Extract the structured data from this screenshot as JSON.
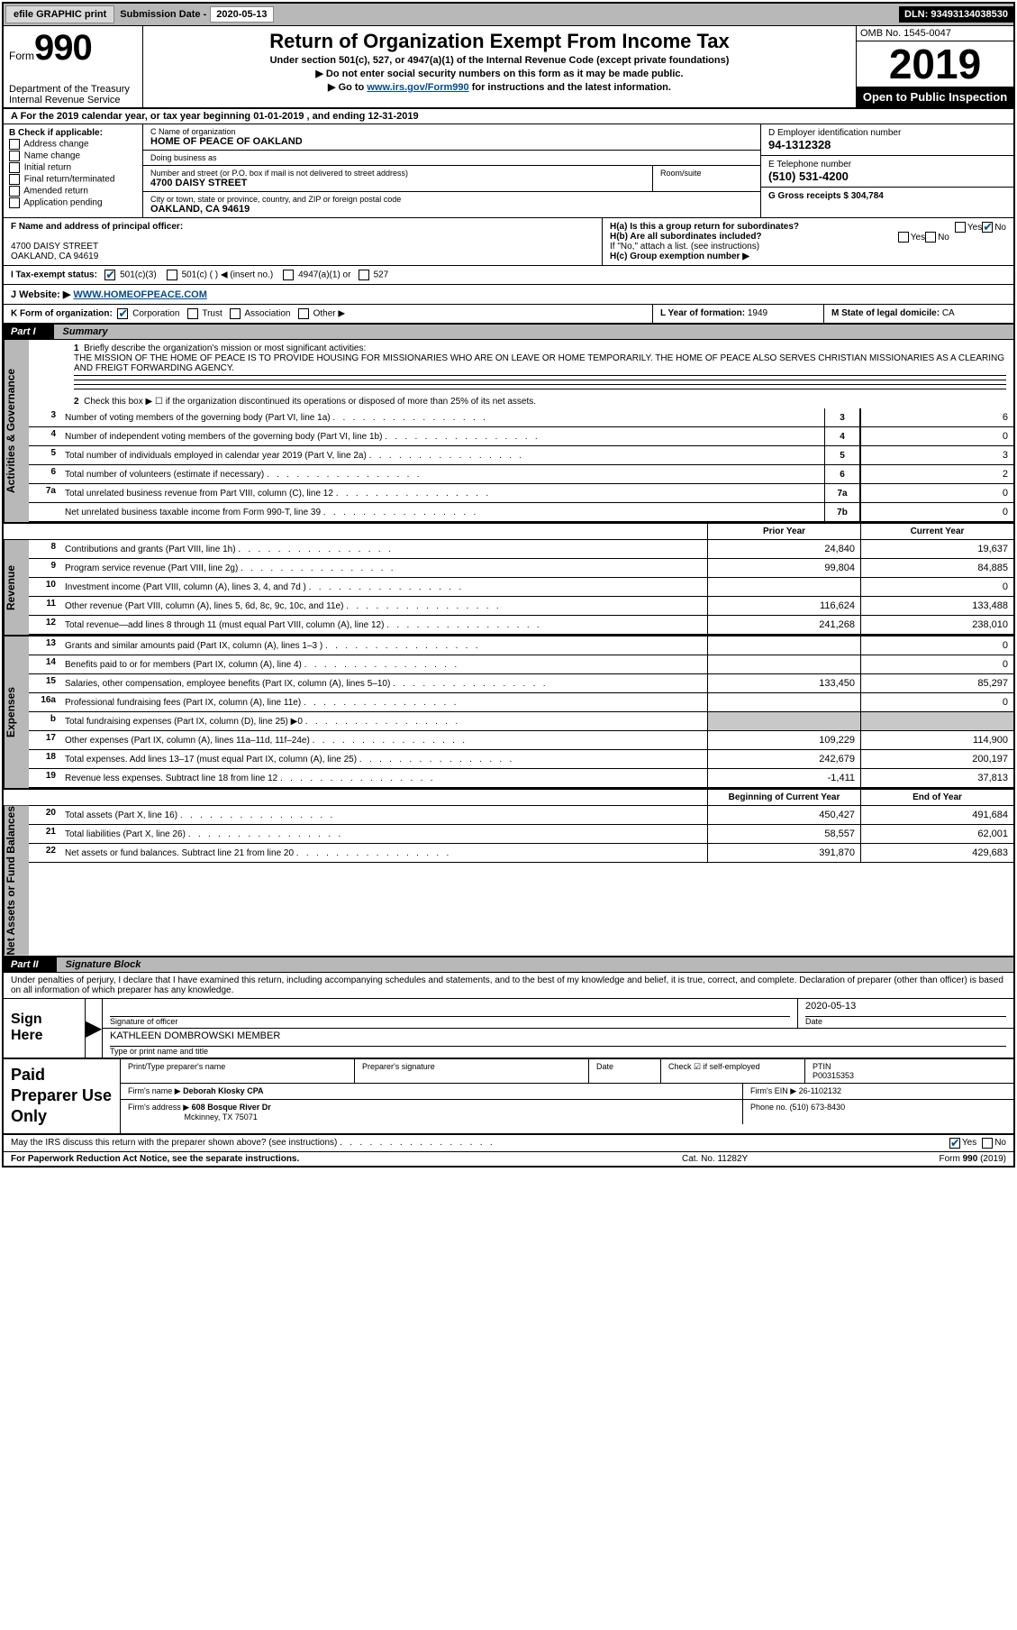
{
  "colors": {
    "header_gray": "#b8b8b8",
    "link_blue": "#004b8d",
    "black": "#000000",
    "white": "#ffffff",
    "shade": "#c8c8c8"
  },
  "topbar": {
    "efile": "efile GRAPHIC print",
    "sub_label": "Submission Date -",
    "sub_date": "2020-05-13",
    "dln": "DLN: 93493134038530"
  },
  "header": {
    "form_word": "Form",
    "form_num": "990",
    "dept": "Department of the Treasury\nInternal Revenue Service",
    "title": "Return of Organization Exempt From Income Tax",
    "sub1": "Under section 501(c), 527, or 4947(a)(1) of the Internal Revenue Code (except private foundations)",
    "sub2": "▶ Do not enter social security numbers on this form as it may be made public.",
    "sub3_pre": "▶ Go to ",
    "sub3_link": "www.irs.gov/Form990",
    "sub3_post": " for instructions and the latest information.",
    "omb": "OMB No. 1545-0047",
    "year": "2019",
    "inspect": "Open to Public Inspection"
  },
  "period": {
    "prefix": "A For the 2019 calendar year, or tax year beginning ",
    "start": "01-01-2019",
    "mid": " , and ending ",
    "end": "12-31-2019"
  },
  "boxB": {
    "hdr": "B Check if applicable:",
    "opts": [
      "Address change",
      "Name change",
      "Initial return",
      "Final return/terminated",
      "Amended return",
      "Application pending"
    ]
  },
  "boxC": {
    "name_lbl": "C Name of organization",
    "name": "HOME OF PEACE OF OAKLAND",
    "dba_lbl": "Doing business as",
    "dba": "",
    "addr_lbl": "Number and street (or P.O. box if mail is not delivered to street address)",
    "room_lbl": "Room/suite",
    "addr": "4700 DAISY STREET",
    "city_lbl": "City or town, state or province, country, and ZIP or foreign postal code",
    "city": "OAKLAND, CA  94619"
  },
  "boxD": {
    "lbl": "D Employer identification number",
    "val": "94-1312328"
  },
  "boxE": {
    "lbl": "E Telephone number",
    "val": "(510) 531-4200"
  },
  "boxG": {
    "lbl": "G Gross receipts $",
    "val": "304,784"
  },
  "boxF": {
    "lbl": "F Name and address of principal officer:",
    "addr1": "4700 DAISY STREET",
    "addr2": "OAKLAND, CA  94619"
  },
  "boxH": {
    "a_lbl": "H(a)  Is this a group return for subordinates?",
    "a_yes": "Yes",
    "a_no": "No",
    "a_checked": "No",
    "b_lbl": "H(b)  Are all subordinates included?",
    "b_yes": "Yes",
    "b_no": "No",
    "b_note": "If \"No,\" attach a list. (see instructions)",
    "c_lbl": "H(c)  Group exemption number ▶"
  },
  "taxstatus": {
    "lbl": "I  Tax-exempt status:",
    "o1": "501(c)(3)",
    "o1_checked": true,
    "o2": "501(c) (   ) ◀ (insert no.)",
    "o3": "4947(a)(1) or",
    "o4": "527"
  },
  "boxJ": {
    "lbl": "J  Website: ▶",
    "val": "WWW.HOMEOFPEACE.COM"
  },
  "boxK": {
    "lbl": "K Form of organization:",
    "o1": "Corporation",
    "o1_checked": true,
    "o2": "Trust",
    "o3": "Association",
    "o4": "Other ▶"
  },
  "boxL": {
    "lbl": "L Year of formation:",
    "val": "1949"
  },
  "boxM": {
    "lbl": "M State of legal domicile:",
    "val": "CA"
  },
  "part1": {
    "tag": "Part I",
    "title": "Summary"
  },
  "mission": {
    "num": "1",
    "lbl": "Briefly describe the organization's mission or most significant activities:",
    "text": "THE MISSION OF THE HOME OF PEACE IS TO PROVIDE HOUSING FOR MISSIONARIES WHO ARE ON LEAVE OR HOME TEMPORARILY. THE HOME OF PEACE ALSO SERVES CHRISTIAN MISSIONARIES AS A CLEARING AND FREIGT FORWARDING AGENCY."
  },
  "line2": {
    "num": "2",
    "text": "Check this box ▶ ☐  if the organization discontinued its operations or disposed of more than 25% of its net assets."
  },
  "sidetabs": {
    "gov": "Activities & Governance",
    "rev": "Revenue",
    "exp": "Expenses",
    "net": "Net Assets or Fund Balances"
  },
  "gov_lines": [
    {
      "n": "3",
      "d": "Number of voting members of the governing body (Part VI, line 1a)",
      "box": "3",
      "v": "6"
    },
    {
      "n": "4",
      "d": "Number of independent voting members of the governing body (Part VI, line 1b)",
      "box": "4",
      "v": "0"
    },
    {
      "n": "5",
      "d": "Total number of individuals employed in calendar year 2019 (Part V, line 2a)",
      "box": "5",
      "v": "3"
    },
    {
      "n": "6",
      "d": "Total number of volunteers (estimate if necessary)",
      "box": "6",
      "v": "2"
    },
    {
      "n": "7a",
      "d": "Total unrelated business revenue from Part VIII, column (C), line 12",
      "box": "7a",
      "v": "0"
    },
    {
      "n": "",
      "d": "Net unrelated business taxable income from Form 990-T, line 39",
      "box": "7b",
      "v": "0"
    }
  ],
  "col_hdrs": {
    "prior": "Prior Year",
    "current": "Current Year"
  },
  "rev_lines": [
    {
      "n": "8",
      "d": "Contributions and grants (Part VIII, line 1h)",
      "py": "24,840",
      "cy": "19,637"
    },
    {
      "n": "9",
      "d": "Program service revenue (Part VIII, line 2g)",
      "py": "99,804",
      "cy": "84,885"
    },
    {
      "n": "10",
      "d": "Investment income (Part VIII, column (A), lines 3, 4, and 7d )",
      "py": "",
      "cy": "0"
    },
    {
      "n": "11",
      "d": "Other revenue (Part VIII, column (A), lines 5, 6d, 8c, 9c, 10c, and 11e)",
      "py": "116,624",
      "cy": "133,488"
    },
    {
      "n": "12",
      "d": "Total revenue—add lines 8 through 11 (must equal Part VIII, column (A), line 12)",
      "py": "241,268",
      "cy": "238,010"
    }
  ],
  "exp_lines": [
    {
      "n": "13",
      "d": "Grants and similar amounts paid (Part IX, column (A), lines 1–3 )",
      "py": "",
      "cy": "0"
    },
    {
      "n": "14",
      "d": "Benefits paid to or for members (Part IX, column (A), line 4)",
      "py": "",
      "cy": "0"
    },
    {
      "n": "15",
      "d": "Salaries, other compensation, employee benefits (Part IX, column (A), lines 5–10)",
      "py": "133,450",
      "cy": "85,297"
    },
    {
      "n": "16a",
      "d": "Professional fundraising fees (Part IX, column (A), line 11e)",
      "py": "",
      "cy": "0"
    },
    {
      "n": "b",
      "d": "Total fundraising expenses (Part IX, column (D), line 25) ▶0",
      "py": "SHADE",
      "cy": "SHADE"
    },
    {
      "n": "17",
      "d": "Other expenses (Part IX, column (A), lines 11a–11d, 11f–24e)",
      "py": "109,229",
      "cy": "114,900"
    },
    {
      "n": "18",
      "d": "Total expenses. Add lines 13–17 (must equal Part IX, column (A), line 25)",
      "py": "242,679",
      "cy": "200,197"
    },
    {
      "n": "19",
      "d": "Revenue less expenses. Subtract line 18 from line 12",
      "py": "-1,411",
      "cy": "37,813"
    }
  ],
  "net_hdrs": {
    "begin": "Beginning of Current Year",
    "end": "End of Year"
  },
  "net_lines": [
    {
      "n": "20",
      "d": "Total assets (Part X, line 16)",
      "py": "450,427",
      "cy": "491,684"
    },
    {
      "n": "21",
      "d": "Total liabilities (Part X, line 26)",
      "py": "58,557",
      "cy": "62,001"
    },
    {
      "n": "22",
      "d": "Net assets or fund balances. Subtract line 21 from line 20",
      "py": "391,870",
      "cy": "429,683"
    }
  ],
  "part2": {
    "tag": "Part II",
    "title": "Signature Block"
  },
  "sig": {
    "disclaimer": "Under penalties of perjury, I declare that I have examined this return, including accompanying schedules and statements, and to the best of my knowledge and belief, it is true, correct, and complete. Declaration of preparer (other than officer) is based on all information of which preparer has any knowledge.",
    "sign_here": "Sign Here",
    "sig_lbl": "Signature of officer",
    "date_lbl": "Date",
    "date_val": "2020-05-13",
    "name": "KATHLEEN DOMBROWSKI MEMBER",
    "name_lbl": "Type or print name and title"
  },
  "paid": {
    "label": "Paid Preparer Use Only",
    "r1c1": "Print/Type preparer's name",
    "r1c2": "Preparer's signature",
    "r1c3": "Date",
    "r1c4_lbl": "Check ☑ if self-employed",
    "r1c5_lbl": "PTIN",
    "r1c5_val": "P00315353",
    "r2c1_lbl": "Firm's name    ▶",
    "r2c1_val": "Deborah Klosky CPA",
    "r2c2_lbl": "Firm's EIN ▶",
    "r2c2_val": "26-1102132",
    "r3c1_lbl": "Firm's address ▶",
    "r3c1_val1": "608 Bosque River Dr",
    "r3c1_val2": "Mckinney, TX  75071",
    "r3c2_lbl": "Phone no.",
    "r3c2_val": "(510) 673-8430"
  },
  "discuss": {
    "text": "May the IRS discuss this return with the preparer shown above? (see instructions)",
    "yes": "Yes",
    "no": "No",
    "checked": "Yes"
  },
  "footer": {
    "f1": "For Paperwork Reduction Act Notice, see the separate instructions.",
    "f2": "Cat. No. 11282Y",
    "f3": "Form 990 (2019)"
  }
}
